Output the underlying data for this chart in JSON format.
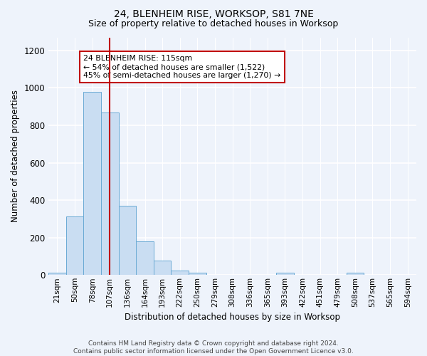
{
  "title1": "24, BLENHEIM RISE, WORKSOP, S81 7NE",
  "title2": "Size of property relative to detached houses in Worksop",
  "xlabel": "Distribution of detached houses by size in Worksop",
  "ylabel": "Number of detached properties",
  "bin_labels": [
    "21sqm",
    "50sqm",
    "78sqm",
    "107sqm",
    "136sqm",
    "164sqm",
    "193sqm",
    "222sqm",
    "250sqm",
    "279sqm",
    "308sqm",
    "336sqm",
    "365sqm",
    "393sqm",
    "422sqm",
    "451sqm",
    "479sqm",
    "508sqm",
    "537sqm",
    "565sqm",
    "594sqm"
  ],
  "bar_values": [
    14,
    312,
    979,
    870,
    369,
    179,
    79,
    24,
    14,
    0,
    0,
    0,
    0,
    11,
    0,
    0,
    0,
    12,
    0,
    0,
    0
  ],
  "bar_color": "#c9ddf2",
  "bar_edge_color": "#6aaad4",
  "property_bin_index": 3,
  "vline_color": "#c00000",
  "annotation_text": "24 BLENHEIM RISE: 115sqm\n← 54% of detached houses are smaller (1,522)\n45% of semi-detached houses are larger (1,270) →",
  "annotation_box_color": "white",
  "annotation_box_edge_color": "#c00000",
  "ylim": [
    0,
    1270
  ],
  "yticks": [
    0,
    200,
    400,
    600,
    800,
    1000,
    1200
  ],
  "footer": "Contains HM Land Registry data © Crown copyright and database right 2024.\nContains public sector information licensed under the Open Government Licence v3.0.",
  "bg_color": "#eef3fb",
  "grid_color": "#ffffff",
  "title1_fontsize": 10,
  "title2_fontsize": 9
}
